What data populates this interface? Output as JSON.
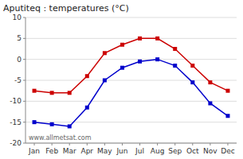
{
  "chart_data": {
    "type": "line",
    "title": "Aputiteq : temperatures (°C)",
    "categories": [
      "Jan",
      "Feb",
      "Mar",
      "Apr",
      "May",
      "Jun",
      "Jul",
      "Aug",
      "Sep",
      "Oct",
      "Nov",
      "Dec"
    ],
    "series": [
      {
        "color": "#cc0000",
        "values": [
          -7.5,
          -8.0,
          -8.0,
          -4.0,
          1.5,
          3.5,
          5.0,
          5.0,
          2.5,
          -1.5,
          -5.5,
          -7.5
        ]
      },
      {
        "color": "#0000cc",
        "values": [
          -15.0,
          -15.5,
          -16.0,
          -11.5,
          -5.0,
          -2.0,
          -0.5,
          0.0,
          -1.5,
          -5.5,
          -10.5,
          -13.5
        ]
      }
    ],
    "ylim": [
      -20,
      10
    ],
    "yticks": [
      -20,
      -15,
      -10,
      -5,
      0,
      5,
      10
    ],
    "grid": true,
    "marker": "square",
    "annotations": [
      "www.allmetsat.com"
    ]
  }
}
